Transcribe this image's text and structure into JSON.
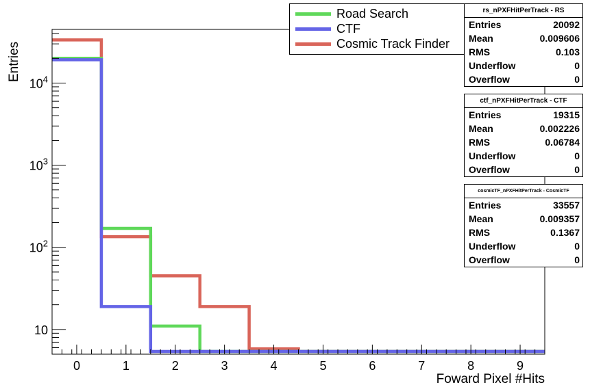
{
  "chart_data": {
    "type": "line",
    "style": "step-histogram",
    "xlabel": "Foward Pixel #Hits",
    "ylabel": "Entries",
    "xlim": [
      -0.5,
      9.5
    ],
    "ylim": [
      5,
      45000
    ],
    "log_y": true,
    "x_ticks": [
      0,
      1,
      2,
      3,
      4,
      5,
      6,
      7,
      8,
      9
    ],
    "x_tick_labels": [
      "0",
      "1",
      "2",
      "3",
      "4",
      "5",
      "6",
      "7",
      "8",
      "9"
    ],
    "y_ticks": [
      10,
      100,
      1000,
      10000
    ],
    "y_tick_labels": [
      "10",
      "10^2",
      "10^3",
      "10^4"
    ],
    "bins": [
      0,
      1,
      2,
      3,
      4,
      5,
      6,
      7,
      8,
      9
    ],
    "series": [
      {
        "name": "Road Search",
        "color": "#5fd85a",
        "values": [
          20000,
          170,
          11,
          5.4,
          5.4,
          5.4,
          5.4,
          5.4,
          5.4,
          5.4
        ]
      },
      {
        "name": "CTF",
        "color": "#6464e6",
        "values": [
          19200,
          19,
          5.4,
          5.4,
          5.4,
          5.4,
          5.4,
          5.4,
          5.4,
          5.4
        ]
      },
      {
        "name": "Cosmic Track Finder",
        "color": "#d9655a",
        "values": [
          33500,
          135,
          45,
          19,
          5.8,
          5.4,
          5.4,
          5.4,
          5.4,
          5.4
        ]
      }
    ],
    "legend": "top-right",
    "stat_boxes": [
      {
        "title": "rs_nPXFHitPerTrack - RS",
        "rows": [
          [
            "Entries",
            "20092"
          ],
          [
            "Mean",
            "0.009606"
          ],
          [
            "RMS",
            "0.103"
          ],
          [
            "Underflow",
            "0"
          ],
          [
            "Overflow",
            "0"
          ]
        ]
      },
      {
        "title": "ctf_nPXFHitPerTrack - CTF",
        "rows": [
          [
            "Entries",
            "19315"
          ],
          [
            "Mean",
            "0.002226"
          ],
          [
            "RMS",
            "0.06784"
          ],
          [
            "Underflow",
            "0"
          ],
          [
            "Overflow",
            "0"
          ]
        ]
      },
      {
        "title": "cosmicTF_nPXFHitPerTrack - CosmicTF",
        "rows": [
          [
            "Entries",
            "33557"
          ],
          [
            "Mean",
            "0.009357"
          ],
          [
            "RMS",
            "0.1367"
          ],
          [
            "Underflow",
            "0"
          ],
          [
            "Overflow",
            "0"
          ]
        ]
      }
    ]
  }
}
